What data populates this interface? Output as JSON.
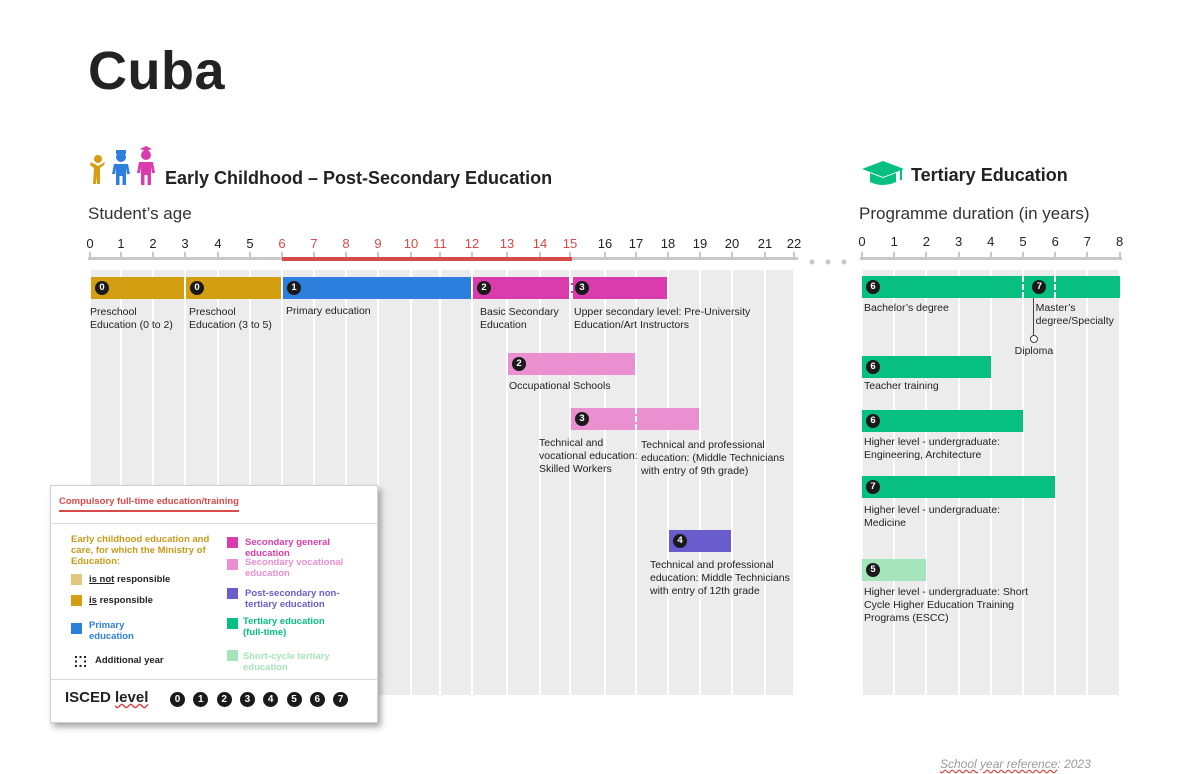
{
  "page": {
    "title": "Cuba",
    "footer": {
      "prefix": "School year reference",
      "suffix": ": 2023"
    }
  },
  "colors": {
    "ecec_responsible": "#d39e12",
    "ecec_not_responsible": "#e2c87f",
    "primary": "#2d7fde",
    "secondary_general": "#db3cad",
    "secondary_vocational": "#ea8fd0",
    "post_secondary": "#6a5ccc",
    "tertiary": "#08bf82",
    "short_cycle": "#a6e4bb",
    "compulsory": "#d64a4a"
  },
  "left_section": {
    "heading": "Early Childhood – Post-Secondary Education",
    "icon": "children-icon",
    "axis_label": "Student’s age",
    "ages": [
      "0",
      "1",
      "2",
      "3",
      "4",
      "5",
      "6",
      "7",
      "8",
      "9",
      "10",
      "11",
      "12",
      "13",
      "14",
      "15",
      "16",
      "17",
      "18",
      "19",
      "20",
      "21",
      "22"
    ],
    "compulsory_from": 6,
    "compulsory_to": 15
  },
  "right_section": {
    "heading": "Tertiary Education",
    "icon": "graduation-cap-icon",
    "axis_label": "Programme duration (in years)",
    "years": [
      "0",
      "1",
      "2",
      "3",
      "4",
      "5",
      "6",
      "7",
      "8"
    ]
  },
  "programmes_left": [
    {
      "start": 0,
      "end": 3,
      "row": 0,
      "color": "ecec_responsible",
      "isced": "0",
      "label": "Preschool\nEducation (0 to 2)"
    },
    {
      "start": 3,
      "end": 6,
      "row": 0,
      "color": "ecec_responsible",
      "isced": "0",
      "label": "Preschool\nEducation (3 to 5)"
    },
    {
      "start": 6,
      "end": 12,
      "row": 0,
      "color": "primary",
      "isced": "1",
      "label": "Primary education"
    },
    {
      "start": 12,
      "end": 15,
      "row": 0,
      "color": "secondary_general",
      "isced": "2",
      "label": "Basic Secondary\nEducation"
    },
    {
      "start": 15,
      "end": 18,
      "row": 0,
      "color": "secondary_general",
      "isced": "3",
      "label": "Upper secondary level: Pre-University\nEducation/Art Instructors"
    },
    {
      "start": 13,
      "end": 17,
      "row": 1,
      "color": "secondary_vocational",
      "isced": "2",
      "label": "Occupational Schools"
    },
    {
      "start": 15,
      "end": 19,
      "row": 2,
      "color": "secondary_vocational",
      "isced": "3",
      "additional_year_at": 17,
      "label": "Technical and\nvocational education:\nSkilled Workers",
      "label2": "Technical and professional\neducation: (Middle Technicians\nwith entry of 9th grade)"
    },
    {
      "start": 18,
      "end": 20,
      "row": 3,
      "color": "post_secondary",
      "isced": "4",
      "label": "Technical and professional\neducation: Middle Technicians\nwith entry of 12th grade"
    }
  ],
  "programmes_right": [
    {
      "start": 0,
      "end": 8,
      "color": "tertiary",
      "isced": "6",
      "label": "Bachelor’s degree",
      "second_isced": "7",
      "second_label": "Master’s\ndegree/Specialty",
      "diploma": "Diploma"
    },
    {
      "start": 0,
      "end": 4,
      "color": "tertiary",
      "isced": "6",
      "label": "Teacher training"
    },
    {
      "start": 0,
      "end": 5,
      "color": "tertiary",
      "isced": "6",
      "label": "Higher level - undergraduate:\nEngineering, Architecture"
    },
    {
      "start": 0,
      "end": 6,
      "color": "tertiary",
      "isced": "7",
      "label": "Higher level - undergraduate:\nMedicine"
    },
    {
      "start": 0,
      "end": 2,
      "color": "short_cycle",
      "isced": "5",
      "label": "Higher level - undergraduate: Short\nCycle Higher Education Training\nPrograms (ESCC)"
    }
  ],
  "legend": {
    "compulsory_label": "Compulsory full-time education/training",
    "ecec_heading": "Early childhood education and care, for which the  Ministry of Education:",
    "not_responsible_a": "is not",
    "not_responsible_b": " responsible",
    "responsible_a": "is",
    "responsible_b": " responsible",
    "primary": "Primary education",
    "additional_year": "Additional year",
    "secondary_general": "Secondary general education",
    "secondary_vocational": "Secondary vocational education",
    "post_secondary": "Post-secondary non-tertiary education",
    "tertiary": "Tertiary education (full-time)",
    "short_cycle": "Short-cycle tertiary education",
    "isced_a": "ISCED ",
    "isced_b": "level",
    "isced_levels": [
      "0",
      "1",
      "2",
      "3",
      "4",
      "5",
      "6",
      "7"
    ]
  }
}
